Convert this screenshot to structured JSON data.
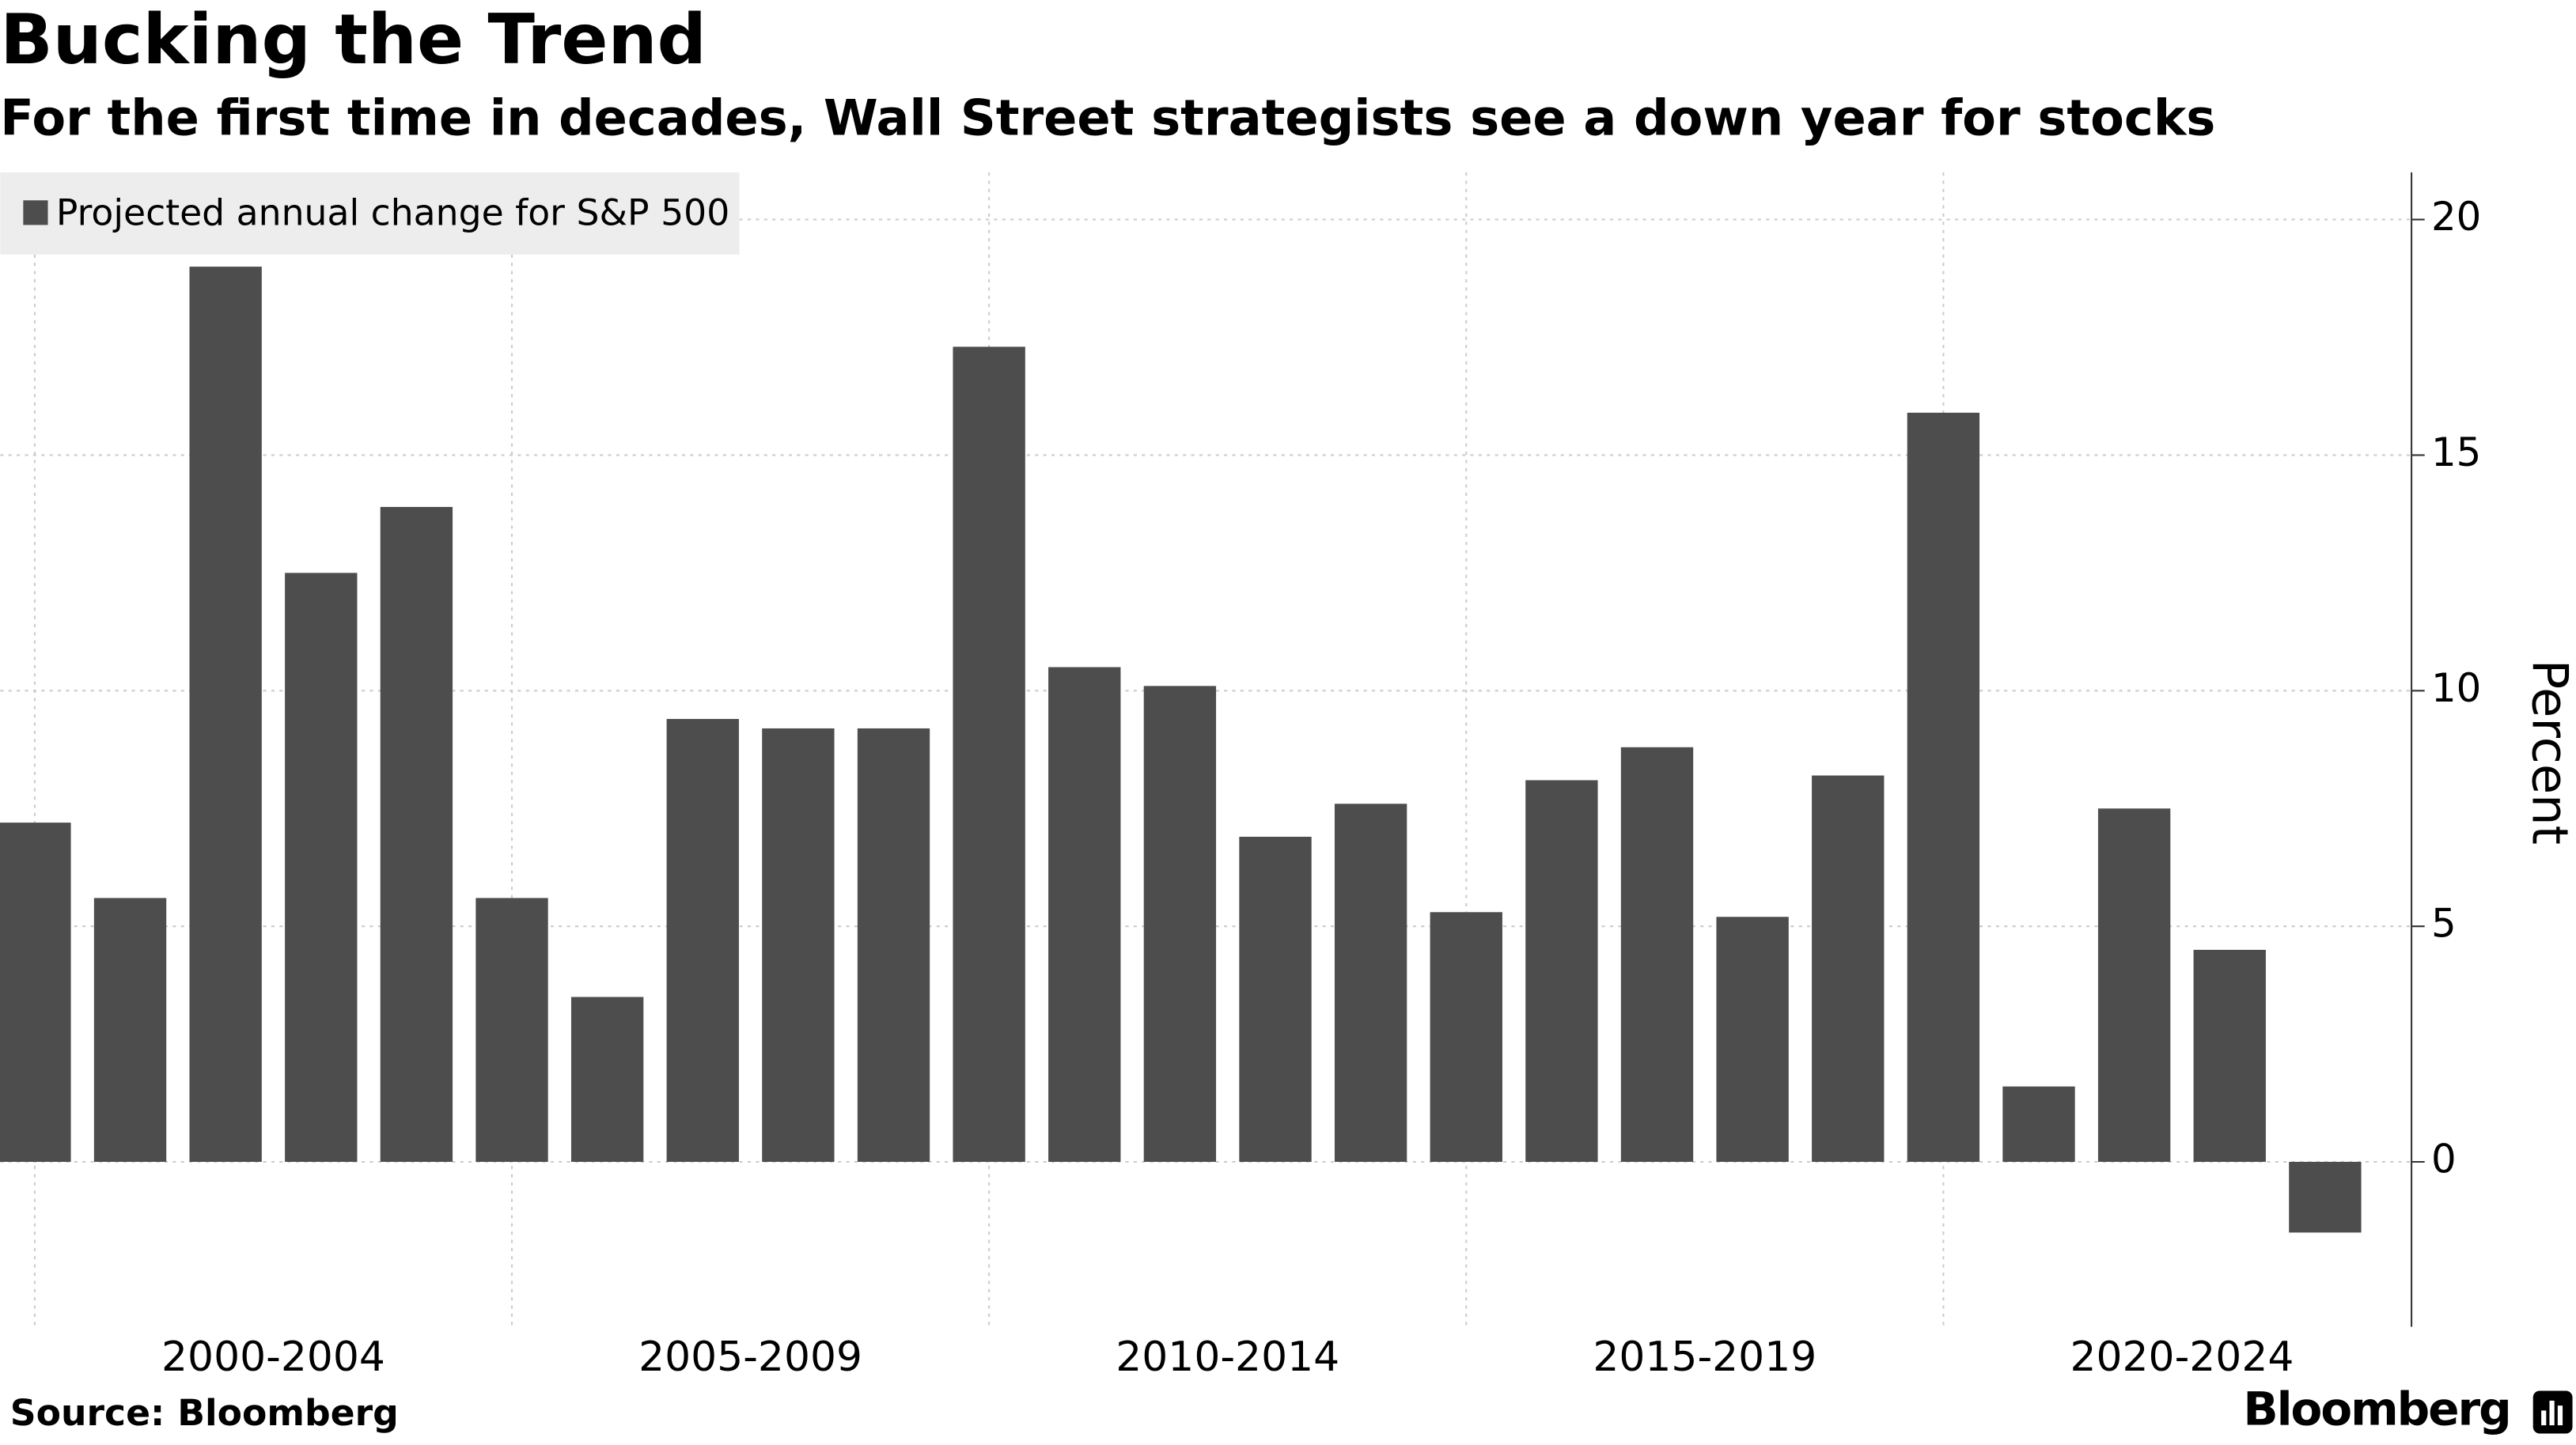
{
  "chart_data": {
    "type": "bar",
    "title": "Bucking the Trend",
    "subtitle": "For the first time in decades, Wall Street strategists see a down year for stocks",
    "categories": [
      null,
      null,
      null,
      null,
      null,
      null,
      null,
      null,
      null,
      null,
      null,
      null,
      null,
      null,
      null,
      null,
      null,
      null,
      null,
      null,
      null,
      null,
      null,
      null,
      null
    ],
    "x_groups": [
      "2000-2004",
      "2005-2009",
      "2010-2014",
      "2015-2019",
      "2020-2024"
    ],
    "series": [
      {
        "name": "Projected annual change for S&P 500",
        "color": "#4d4d4d",
        "values": [
          7.2,
          5.6,
          19.0,
          12.5,
          13.9,
          5.6,
          3.5,
          9.4,
          9.2,
          9.2,
          17.3,
          10.5,
          10.1,
          6.9,
          7.6,
          5.3,
          8.1,
          8.8,
          5.2,
          8.2,
          15.9,
          1.6,
          7.5,
          4.5,
          -1.5
        ]
      }
    ],
    "y_label": "Percent",
    "ylim": [
      -3.5,
      21
    ],
    "yticks": [
      0,
      5,
      10,
      15,
      20
    ],
    "y_axis_side": "right",
    "grid": true,
    "legend": "top-left",
    "source": "Source: Bloomberg",
    "brand": "Bloomberg"
  }
}
